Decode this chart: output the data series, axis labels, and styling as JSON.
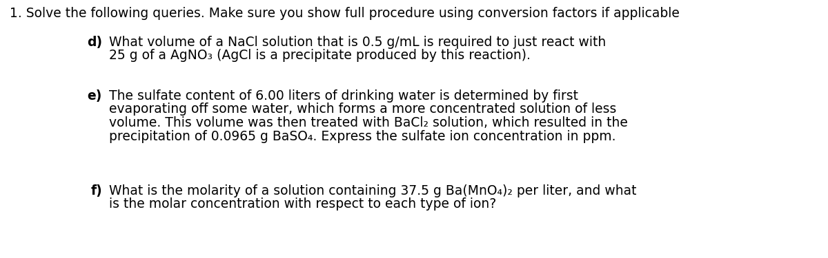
{
  "background_color": "#ffffff",
  "figsize": [
    12.0,
    3.75
  ],
  "dpi": 100,
  "header": "1. Solve the following queries. Make sure you show full procedure using conversion factors if applicable",
  "fontsize": 13.5,
  "font_family": "DejaVu Sans",
  "text_color": "#000000",
  "items": [
    {
      "label": "d)",
      "lines": [
        "What volume of a NaCl solution that is 0.5 g/mL is required to just react with",
        "25 g of a AgNO₃ (AgCl is a precipitate produced by this reaction)."
      ]
    },
    {
      "label": "e)",
      "lines": [
        "The sulfate content of 6.00 liters of drinking water is determined by first",
        "evaporating off some water, which forms a more concentrated solution of less",
        "volume. This volume was then treated with BaCl₂ solution, which resulted in the",
        "precipitation of 0.0965 g BaSO₄. Express the sulfate ion concentration in ppm."
      ]
    },
    {
      "label": "f)",
      "lines": [
        "What is the molarity of a solution containing 37.5 g Ba(MnO₄)₂ per liter, and what",
        "is the molar concentration with respect to each type of ion?"
      ]
    }
  ]
}
